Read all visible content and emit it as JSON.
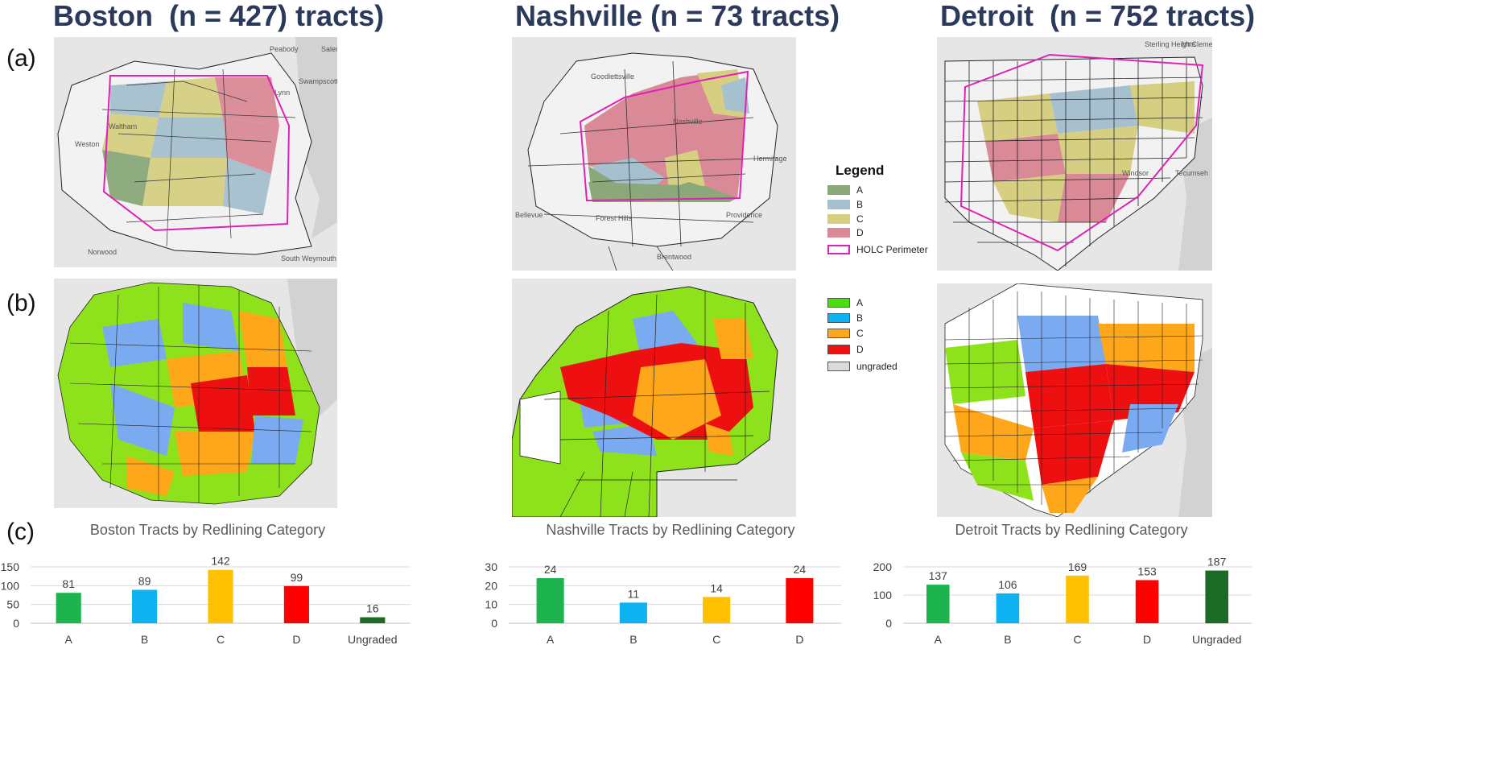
{
  "titles": {
    "boston": "Boston  (n = 427) tracts)",
    "nashville": "Nashville (n = 73 tracts)",
    "detroit": "Detroit  (n = 752 tracts)"
  },
  "row_labels": {
    "a": "(a)",
    "b": "(b)",
    "c": "(c)"
  },
  "map_place_labels": {
    "boston": [
      "Peabody",
      "Salem",
      "Lynn",
      "Swampscott",
      "Waltham",
      "Weston",
      "Norwood",
      "South Weymouth"
    ],
    "nashville": [
      "Goodlettsville",
      "Nashville",
      "Bellevue",
      "Forest Hills",
      "Providence",
      "Brentwood",
      "Hermitage"
    ],
    "detroit": [
      "Sterling Heights",
      "Mt Clemens",
      "Windsor",
      "Tecumseh"
    ]
  },
  "legend_a": {
    "title": "Legend",
    "items": [
      {
        "label": "A",
        "color": "#8aa87a"
      },
      {
        "label": "B",
        "color": "#a6c0cf"
      },
      {
        "label": "C",
        "color": "#d6cf82"
      },
      {
        "label": "D",
        "color": "#d98a96"
      },
      {
        "label": "HOLC Perimeter",
        "color": "#e021b5"
      }
    ]
  },
  "legend_b": {
    "items": [
      {
        "label": "A",
        "color": "#4cde0a"
      },
      {
        "label": "B",
        "color": "#0db2f2"
      },
      {
        "label": "C",
        "color": "#ffa71a"
      },
      {
        "label": "D",
        "color": "#ee1010"
      },
      {
        "label": "ungraded",
        "color": "#dadada"
      }
    ]
  },
  "map_colors_a": {
    "A": "#8aa87a",
    "B": "#a6c0cf",
    "C": "#d6cf82",
    "D": "#d98a96",
    "perimeter": "#e021b5"
  },
  "map_colors_b": {
    "A": "#8de21c",
    "B": "#7aaaf0",
    "C": "#ffa71a",
    "D": "#ee1010"
  },
  "chart_data": [
    {
      "type": "bar",
      "title": "Boston Tracts by Redlining Category",
      "categories": [
        "A",
        "B",
        "C",
        "D",
        "Ungraded"
      ],
      "values": [
        81,
        89,
        142,
        99,
        16
      ],
      "colors": [
        "#1db44f",
        "#0db2f2",
        "#ffc000",
        "#ff0000",
        "#1b6b26"
      ],
      "yticks": [
        0,
        50,
        100,
        150
      ],
      "ylim": [
        0,
        150
      ]
    },
    {
      "type": "bar",
      "title": "Nashville Tracts by Redlining Category",
      "categories": [
        "A",
        "B",
        "C",
        "D"
      ],
      "values": [
        24,
        11,
        14,
        24
      ],
      "colors": [
        "#1db44f",
        "#0db2f2",
        "#ffc000",
        "#ff0000"
      ],
      "yticks": [
        0,
        10,
        20,
        30
      ],
      "ylim": [
        0,
        30
      ]
    },
    {
      "type": "bar",
      "title": "Detroit Tracts by Redlining Category",
      "categories": [
        "A",
        "B",
        "C",
        "D",
        "Ungraded"
      ],
      "values": [
        137,
        106,
        169,
        153,
        187
      ],
      "colors": [
        "#1db44f",
        "#0db2f2",
        "#ffc000",
        "#ff0000",
        "#1b6b26"
      ],
      "yticks": [
        0,
        100,
        200
      ],
      "ylim": [
        0,
        200
      ]
    }
  ]
}
